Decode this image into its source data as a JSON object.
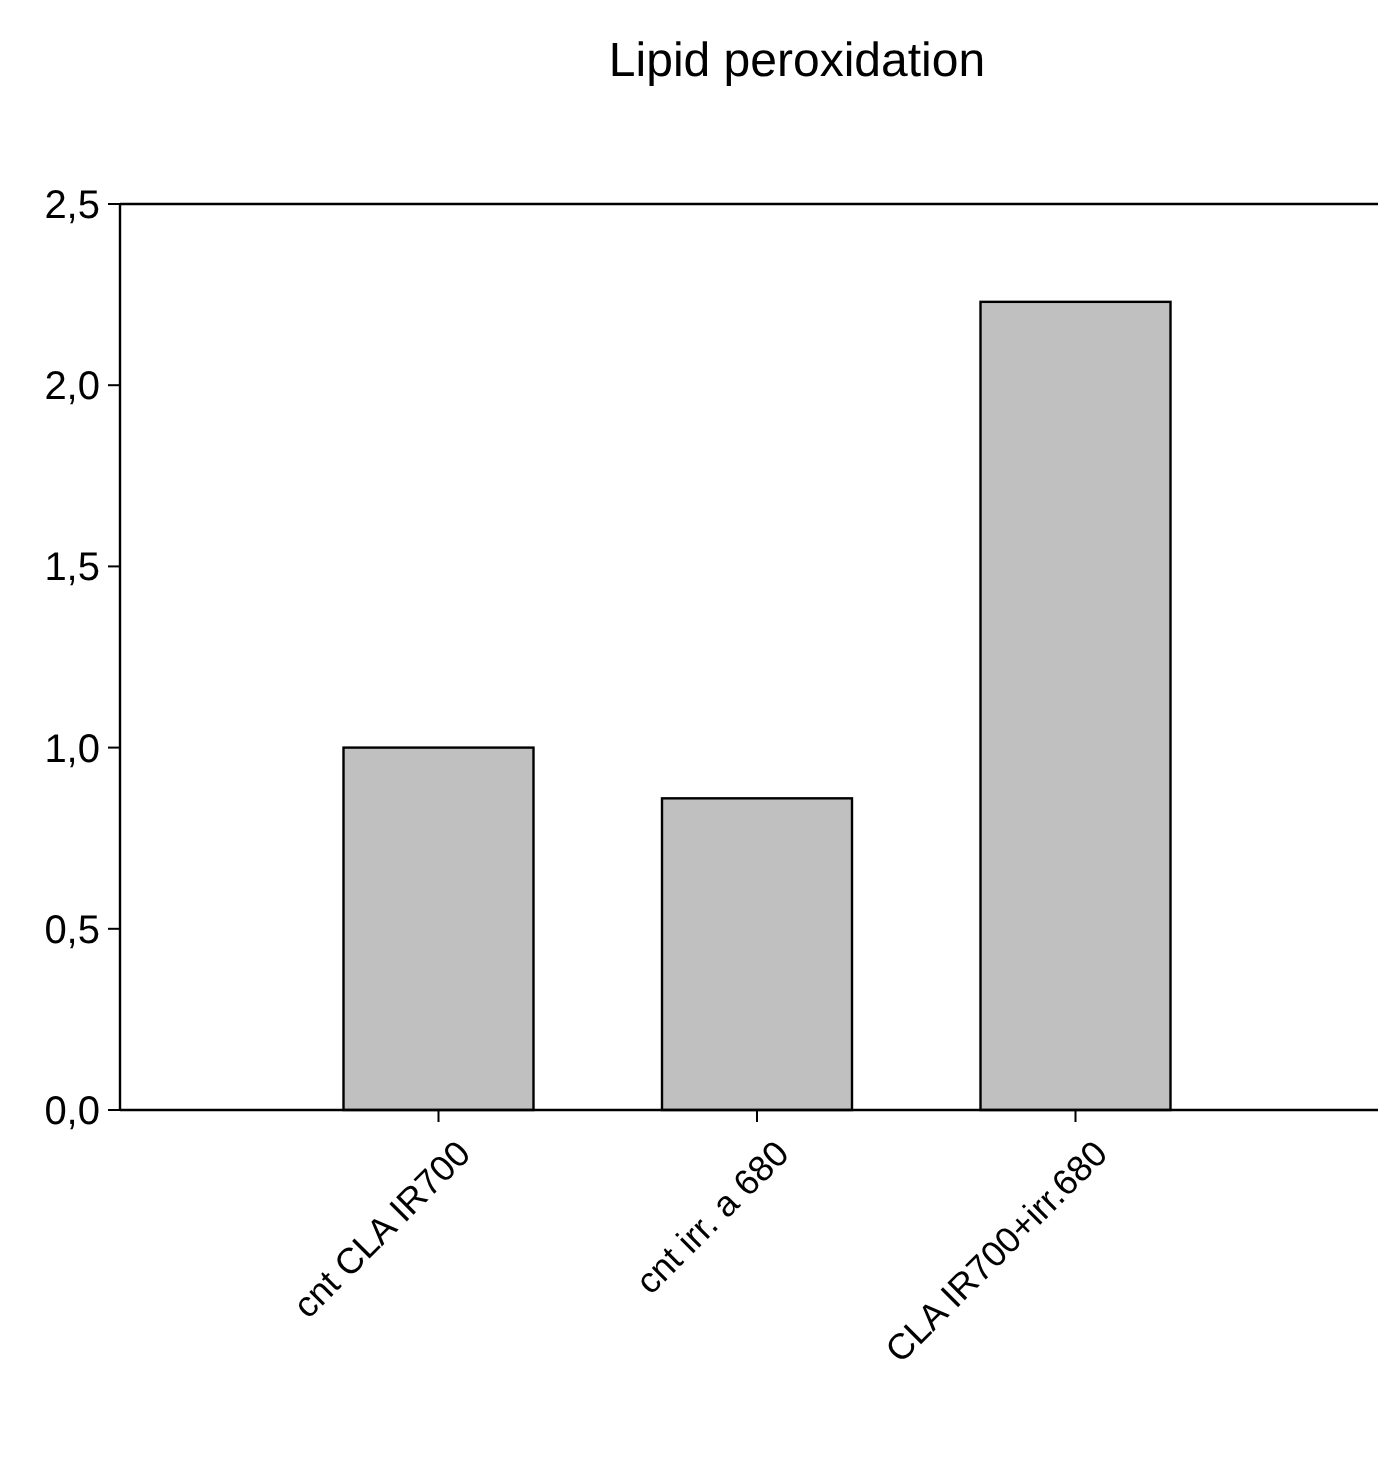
{
  "chart_data": {
    "type": "bar",
    "title": "Lipid peroxidation",
    "categories": [
      "cnt CLA IR700",
      "cnt irr. a 680",
      "CLA IR700+irr.680"
    ],
    "values": [
      1.0,
      0.86,
      2.23
    ],
    "color": "#c0c0c0",
    "ylim": [
      0,
      2.5
    ],
    "yticks": [
      {
        "value": 0,
        "label": "0,0"
      },
      {
        "value": 0.5,
        "label": "0,5"
      },
      {
        "value": 1,
        "label": "1,0"
      },
      {
        "value": 1.5,
        "label": "1,5"
      },
      {
        "value": 2,
        "label": "2,0"
      },
      {
        "value": 2.5,
        "label": "2,5"
      }
    ],
    "grid": false
  }
}
